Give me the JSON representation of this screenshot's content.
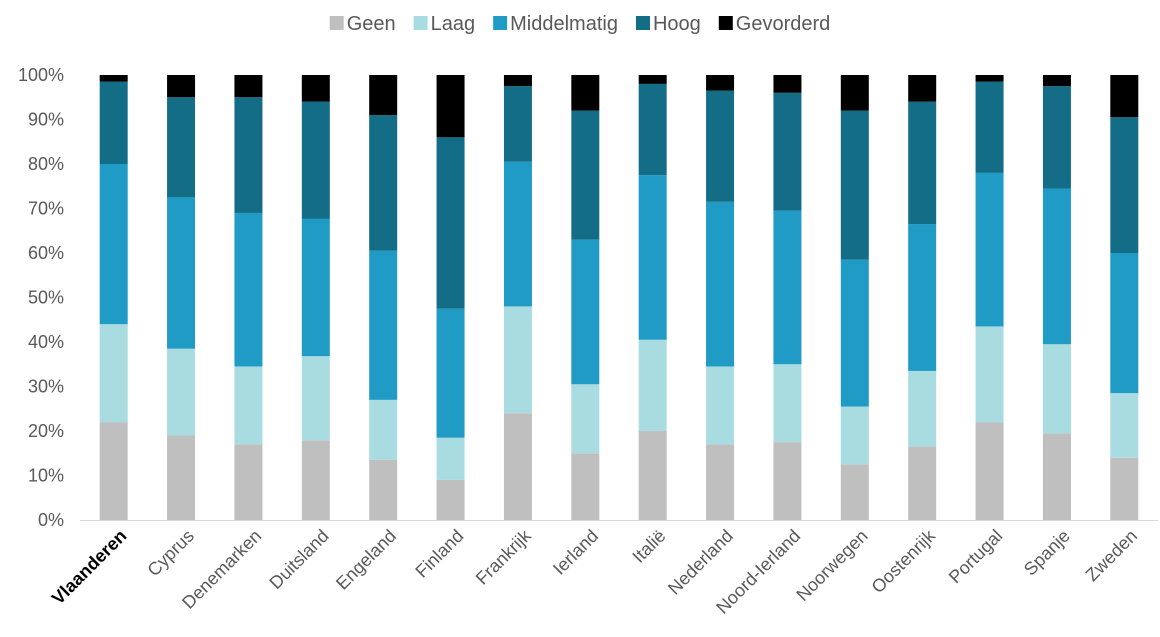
{
  "chart_data": {
    "type": "bar",
    "stacked": true,
    "categories": [
      "Vlaanderen",
      "Cyprus",
      "Denemarken",
      "Duitsland",
      "Engeland",
      "Finland",
      "Frankrijk",
      "Ierland",
      "Italië",
      "Nederland",
      "Noord-Ierland",
      "Noorwegen",
      "Oostenrijk",
      "Portugal",
      "Spanje",
      "Zweden"
    ],
    "highlight_category": "Vlaanderen",
    "series": [
      {
        "name": "Geen",
        "color": "#bfbfbf",
        "values": [
          22,
          19,
          17,
          18,
          13.5,
          9,
          24,
          15,
          20,
          17,
          17.5,
          12.5,
          16.5,
          22,
          19.5,
          14
        ]
      },
      {
        "name": "Laag",
        "color": "#a9dce1",
        "values": [
          22,
          19.5,
          17.5,
          19,
          13.5,
          9.5,
          24,
          15.5,
          20.5,
          17.5,
          17.5,
          13,
          17,
          21.5,
          20,
          14.5
        ]
      },
      {
        "name": "Middelmatig",
        "color": "#1f9bc6",
        "values": [
          36,
          34,
          34.5,
          31,
          33.5,
          29,
          32.5,
          32.5,
          37,
          37,
          34.5,
          33,
          33,
          34.5,
          35,
          31.5
        ]
      },
      {
        "name": "Hoog",
        "color": "#136d86",
        "values": [
          18.5,
          22.5,
          26,
          26.5,
          30.5,
          38.5,
          17,
          29,
          20.5,
          25,
          26.5,
          33.5,
          27.5,
          20.5,
          23,
          30.5
        ]
      },
      {
        "name": "Gevorderd",
        "color": "#000000",
        "values": [
          1.5,
          5,
          5,
          6,
          9,
          14,
          2.5,
          8,
          2,
          3.5,
          4,
          8,
          6,
          1.5,
          2.5,
          9.5
        ]
      }
    ],
    "y_tick_labels": [
      "0%",
      "10%",
      "20%",
      "30%",
      "40%",
      "50%",
      "60%",
      "70%",
      "80%",
      "90%",
      "100%"
    ],
    "ylim": [
      0,
      100
    ],
    "grid": false,
    "legend_position": "top"
  }
}
